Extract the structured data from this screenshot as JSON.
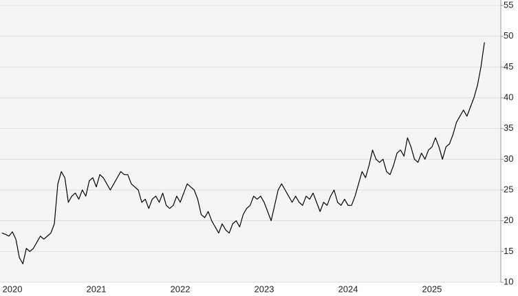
{
  "chart_data": {
    "type": "line",
    "color": "#000000",
    "grid": true,
    "categories": [
      null,
      null,
      null,
      "2020",
      null,
      null,
      null,
      null,
      null,
      null,
      null,
      null,
      null,
      null,
      null,
      null,
      null,
      null,
      null,
      null,
      null,
      null,
      null,
      null,
      null,
      null,
      null,
      "2021",
      null,
      null,
      null,
      null,
      null,
      null,
      null,
      null,
      null,
      null,
      null,
      null,
      null,
      null,
      null,
      null,
      null,
      null,
      null,
      null,
      null,
      null,
      null,
      "2022",
      null,
      null,
      null,
      null,
      null,
      null,
      null,
      null,
      null,
      null,
      null,
      null,
      null,
      null,
      null,
      null,
      null,
      null,
      null,
      null,
      null,
      null,
      null,
      "2023",
      null,
      null,
      null,
      null,
      null,
      null,
      null,
      null,
      null,
      null,
      null,
      null,
      null,
      null,
      null,
      null,
      null,
      null,
      null,
      null,
      null,
      null,
      null,
      "2024",
      null,
      null,
      null,
      null,
      null,
      null,
      null,
      null,
      null,
      null,
      null,
      null,
      null,
      null,
      null,
      null,
      null,
      null,
      null,
      null,
      null,
      null,
      null,
      "2025",
      null,
      null,
      null,
      null,
      null,
      null,
      null,
      null,
      null,
      null,
      null,
      null,
      null,
      null,
      null
    ],
    "values": [
      18,
      17.8,
      17.5,
      18.2,
      17,
      14,
      13,
      15.5,
      15,
      15.5,
      16.5,
      17.5,
      17,
      17.5,
      18,
      19.5,
      26,
      28,
      27,
      23,
      24,
      24.5,
      23.5,
      25,
      24,
      26.5,
      27,
      25.5,
      27.5,
      27,
      26,
      25,
      26,
      27,
      28,
      27.5,
      27.5,
      26,
      25.5,
      25,
      23,
      23.5,
      22,
      23.5,
      24,
      23,
      24.5,
      22.5,
      22,
      22.5,
      24,
      23,
      24.5,
      26,
      25.5,
      25,
      23.5,
      21,
      20.5,
      21.5,
      20,
      19,
      18,
      19.5,
      18.5,
      18,
      19.5,
      20,
      19,
      21,
      22,
      22.5,
      24,
      23.5,
      24,
      23,
      21.5,
      20,
      22.5,
      25,
      26,
      25,
      24,
      23,
      24,
      23,
      22.5,
      24,
      23.5,
      24.5,
      23,
      21.5,
      23,
      22.5,
      24,
      25,
      23,
      22.5,
      23.5,
      22.5,
      22.5,
      24,
      26,
      28,
      27,
      29,
      31.5,
      30,
      29.5,
      30,
      28,
      27.5,
      29,
      31,
      31.5,
      30.5,
      33.5,
      32,
      30,
      29.5,
      31,
      30,
      31.5,
      32,
      33.5,
      32,
      30,
      32,
      32.5,
      34,
      36,
      37,
      38,
      37,
      38.5,
      40,
      42,
      45,
      49
    ],
    "ylim": [
      10,
      55
    ],
    "yticks": [
      10,
      15,
      20,
      25,
      30,
      35,
      40,
      45,
      50,
      55
    ]
  }
}
